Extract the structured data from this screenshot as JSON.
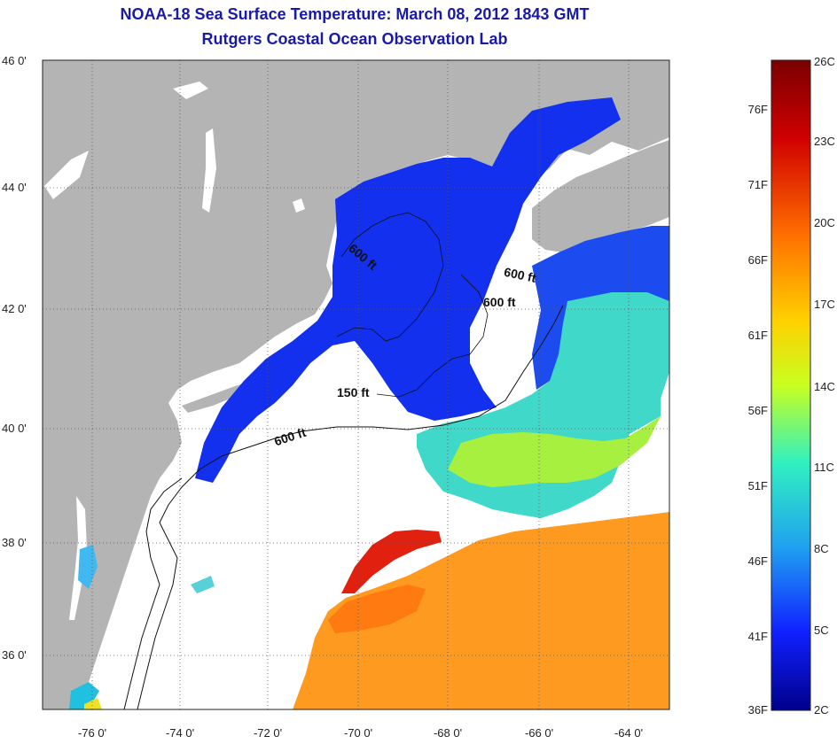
{
  "header": {
    "title": "NOAA-18 Sea Surface Temperature:  March 08, 2012 1843 GMT",
    "subtitle": "Rutgers Coastal Ocean Observation Lab"
  },
  "colors": {
    "title": "#1a1aa8",
    "land": "#b4b4b4",
    "cloud": "#ffffff"
  },
  "map": {
    "lat_labels": [
      "46 0'",
      "44 0'",
      "42 0'",
      "40 0'",
      "38 0'",
      "36 0'"
    ],
    "lon_labels": [
      "-76 0'",
      "-74 0'",
      "-72 0'",
      "-70 0'",
      "-68 0'",
      "-66 0'",
      "-64 0'"
    ],
    "contour_labels": [
      "600 ft",
      "600 ft",
      "600 ft",
      "150 ft",
      "600 ft"
    ]
  },
  "colorbar": {
    "fahrenheit_labels": [
      "76F",
      "71F",
      "66F",
      "61F",
      "56F",
      "51F",
      "46F",
      "41F",
      "36F"
    ],
    "celsius_labels": [
      "26C",
      "23C",
      "20C",
      "17C",
      "14C",
      "11C",
      "8C",
      "5C",
      "2C"
    ]
  }
}
